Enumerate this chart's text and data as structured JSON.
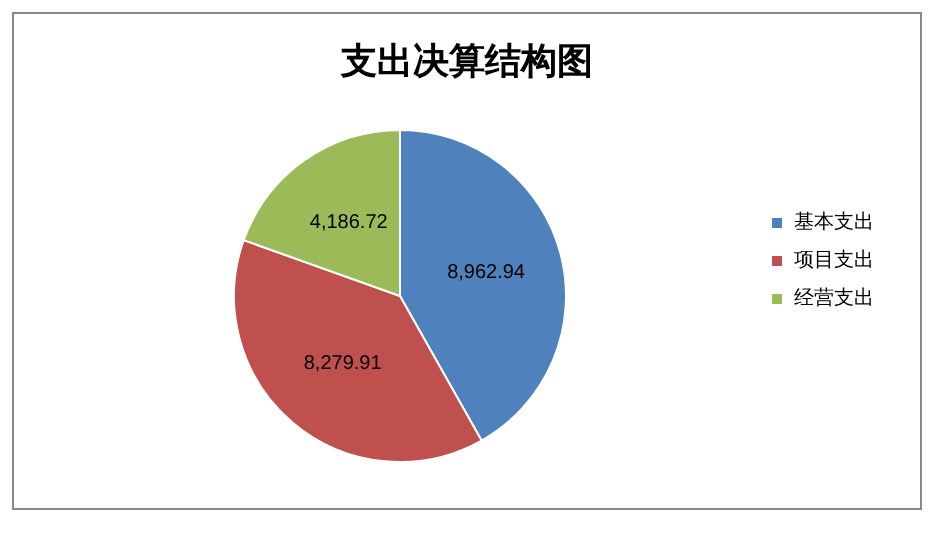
{
  "chart_data": {
    "type": "pie",
    "title": "支出决算结构图",
    "categories": [
      "基本支出",
      "项目支出",
      "经营支出"
    ],
    "values": [
      8962.94,
      8279.91,
      4186.72
    ],
    "value_labels": [
      "8,962.94",
      "8,279.91",
      "4,186.72"
    ],
    "colors": [
      "#4f81bd",
      "#c0504d",
      "#9bbb59"
    ],
    "legend": "right"
  }
}
